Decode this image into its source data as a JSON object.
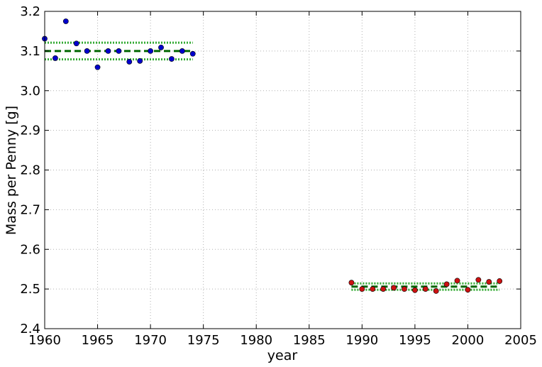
{
  "chart_data": {
    "type": "scatter",
    "title": "",
    "xlabel": "year",
    "ylabel": "Mass per Penny [g]",
    "xlim": [
      1960,
      2005
    ],
    "ylim": [
      2.4,
      3.2
    ],
    "xticks": [
      "1960",
      "1965",
      "1970",
      "1975",
      "1980",
      "1985",
      "1990",
      "1995",
      "2000",
      "2005"
    ],
    "xtick_values": [
      1960,
      1965,
      1970,
      1975,
      1980,
      1985,
      1990,
      1995,
      2000,
      2005
    ],
    "yticks": [
      "2.4",
      "2.5",
      "2.6",
      "2.7",
      "2.8",
      "2.9",
      "3.0",
      "3.1",
      "3.2"
    ],
    "ytick_values": [
      2.4,
      2.5,
      2.6,
      2.7,
      2.8,
      2.9,
      3.0,
      3.1,
      3.2
    ],
    "grid": true,
    "series": [
      {
        "color": "#0000cc",
        "marker": "circle",
        "x": [
          1960,
          1961,
          1962,
          1963,
          1964,
          1965,
          1966,
          1967,
          1968,
          1969,
          1970,
          1971,
          1972,
          1973,
          1974
        ],
        "y": [
          3.131,
          3.082,
          3.175,
          3.119,
          3.1,
          3.059,
          3.1,
          3.1,
          3.073,
          3.075,
          3.1,
          3.109,
          3.08,
          3.1,
          3.093
        ]
      },
      {
        "color": "#cc1111",
        "marker": "circle",
        "x": [
          1989,
          1990,
          1991,
          1992,
          1993,
          1994,
          1995,
          1996,
          1997,
          1998,
          1999,
          2000,
          2001,
          2002,
          2003
        ],
        "y": [
          2.516,
          2.5,
          2.5,
          2.5,
          2.503,
          2.5,
          2.497,
          2.5,
          2.495,
          2.512,
          2.521,
          2.498,
          2.523,
          2.518,
          2.52
        ]
      }
    ],
    "reference_lines": [
      {
        "style": "dashed",
        "color": "#006600",
        "x_range": [
          1960,
          1974
        ],
        "y": 3.1
      },
      {
        "style": "dotted",
        "color": "#33aa33",
        "x_range": [
          1960,
          1974
        ],
        "y": 3.121
      },
      {
        "style": "dotted",
        "color": "#33aa33",
        "x_range": [
          1960,
          1974
        ],
        "y": 3.079
      },
      {
        "style": "dashed",
        "color": "#006600",
        "x_range": [
          1989,
          2003
        ],
        "y": 2.506
      },
      {
        "style": "dotted",
        "color": "#33aa33",
        "x_range": [
          1989,
          2003
        ],
        "y": 2.514
      },
      {
        "style": "dotted",
        "color": "#33aa33",
        "x_range": [
          1989,
          2003
        ],
        "y": 2.498
      }
    ]
  }
}
